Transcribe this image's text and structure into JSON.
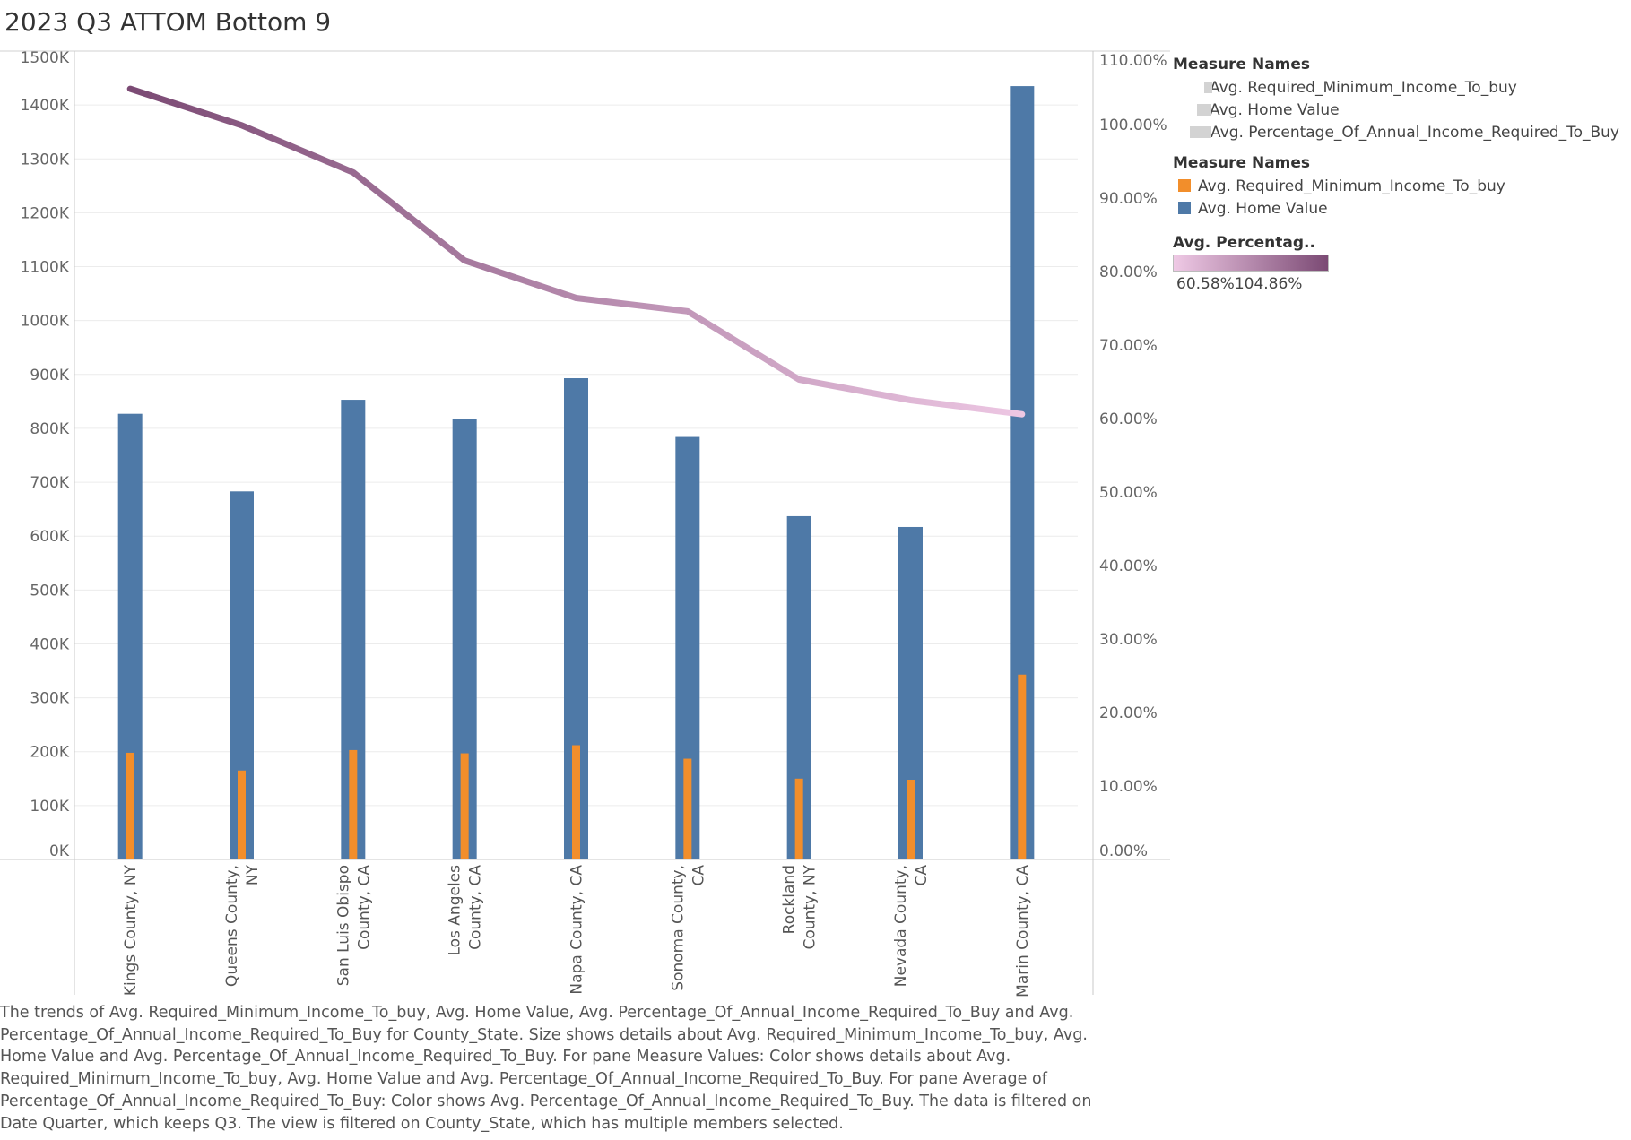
{
  "title": "2023 Q3 ATTOM Bottom 9",
  "colors": {
    "home_value": "#4e79a7",
    "required_income": "#f28e2b",
    "percentage_low": "#efc9e5",
    "percentage_high": "#7b4a74",
    "size_legend": "#d3d3d3"
  },
  "chart_data": {
    "type": "bar",
    "x_field": "County_State",
    "categories": [
      [
        "Kings County, NY"
      ],
      [
        "Queens County,",
        "NY"
      ],
      [
        "San Luis Obispo",
        "County, CA"
      ],
      [
        "Los Angeles",
        "County, CA"
      ],
      [
        "Napa County, CA"
      ],
      [
        "Sonoma County,",
        "CA"
      ],
      [
        "Rockland",
        "County, NY"
      ],
      [
        "Nevada County,",
        "CA"
      ],
      [
        "Marin County, CA"
      ]
    ],
    "series": [
      {
        "name": "Avg. Home Value",
        "type": "bar",
        "axis": "left",
        "color": "#4e79a7",
        "values": [
          827000,
          683000,
          853000,
          818000,
          893000,
          784000,
          637000,
          617000,
          1435000
        ]
      },
      {
        "name": "Avg. Required_Minimum_Income_To_buy",
        "type": "bar",
        "axis": "left",
        "color": "#f28e2b",
        "values": [
          198000,
          165000,
          203000,
          197000,
          212000,
          187000,
          150000,
          148000,
          343000
        ]
      },
      {
        "name": "Avg. Percentage_Of_Annual_Income_Required_To_Buy",
        "type": "line",
        "axis": "right",
        "values": [
          104.86,
          99.9,
          93.5,
          81.5,
          76.4,
          74.6,
          65.3,
          62.5,
          60.58
        ]
      }
    ],
    "y_left": {
      "min": 0,
      "max": 1500000,
      "ticks": [
        {
          "value": 0,
          "label": "0K"
        },
        {
          "value": 100000,
          "label": "100K"
        },
        {
          "value": 200000,
          "label": "200K"
        },
        {
          "value": 300000,
          "label": "300K"
        },
        {
          "value": 400000,
          "label": "400K"
        },
        {
          "value": 500000,
          "label": "500K"
        },
        {
          "value": 600000,
          "label": "600K"
        },
        {
          "value": 700000,
          "label": "700K"
        },
        {
          "value": 800000,
          "label": "800K"
        },
        {
          "value": 900000,
          "label": "900K"
        },
        {
          "value": 1000000,
          "label": "1000K"
        },
        {
          "value": 1100000,
          "label": "1100K"
        },
        {
          "value": 1200000,
          "label": "1200K"
        },
        {
          "value": 1300000,
          "label": "1300K"
        },
        {
          "value": 1400000,
          "label": "1400K"
        },
        {
          "value": 1500000,
          "label": "1500K"
        }
      ]
    },
    "y_right": {
      "min": 0,
      "max": 110,
      "ticks": [
        {
          "value": 0,
          "label": "0.00%"
        },
        {
          "value": 10,
          "label": "10.00%"
        },
        {
          "value": 20,
          "label": "20.00%"
        },
        {
          "value": 30,
          "label": "30.00%"
        },
        {
          "value": 40,
          "label": "40.00%"
        },
        {
          "value": 50,
          "label": "50.00%"
        },
        {
          "value": 60,
          "label": "60.00%"
        },
        {
          "value": 70,
          "label": "70.00%"
        },
        {
          "value": 80,
          "label": "80.00%"
        },
        {
          "value": 90,
          "label": "90.00%"
        },
        {
          "value": 100,
          "label": "100.00%"
        },
        {
          "value": 110,
          "label": "110.00%"
        }
      ]
    },
    "grid": true,
    "legend_placement": "right",
    "color_range": {
      "min": 60.58,
      "max": 104.86
    }
  },
  "legend": {
    "size": {
      "title": "Measure Names",
      "items": [
        {
          "label": "Avg. Required_Minimum_Income_To_buy",
          "size": 1
        },
        {
          "label": "Avg. Home Value",
          "size": 2
        },
        {
          "label": "Avg. Percentage_Of_Annual_Income_Required_To_Buy",
          "size": 3
        }
      ]
    },
    "color": {
      "title": "Measure Names",
      "items": [
        {
          "label": "Avg. Required_Minimum_Income_To_buy",
          "color": "#f28e2b"
        },
        {
          "label": "Avg. Home Value",
          "color": "#4e79a7"
        }
      ]
    },
    "gradient": {
      "title": "Avg. Percentag..",
      "min_label": "60.58%",
      "max_label": "104.86%"
    }
  },
  "caption": "The trends of Avg. Required_Minimum_Income_To_buy, Avg. Home Value, Avg. Percentage_Of_Annual_Income_Required_To_Buy and Avg. Percentage_Of_Annual_Income_Required_To_Buy for County_State.  Size shows details about Avg. Required_Minimum_Income_To_buy, Avg. Home Value and Avg. Percentage_Of_Annual_Income_Required_To_Buy.  For pane Measure Values:  Color shows details about Avg. Required_Minimum_Income_To_buy, Avg. Home Value and Avg. Percentage_Of_Annual_Income_Required_To_Buy.  For pane Average of Percentage_Of_Annual_Income_Required_To_Buy:  Color shows Avg. Percentage_Of_Annual_Income_Required_To_Buy. The data is filtered on Date Quarter, which keeps Q3. The view is filtered on County_State, which has multiple members selected."
}
